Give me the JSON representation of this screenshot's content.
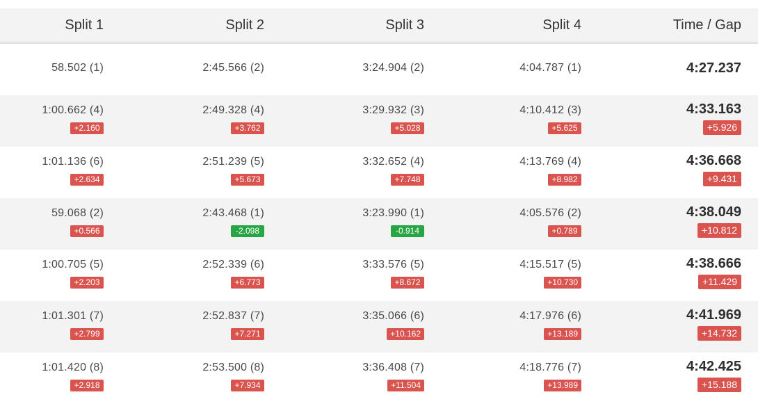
{
  "header": {
    "columns": [
      "Split 1",
      "Split 2",
      "Split 3",
      "Split 4",
      "Time / Gap"
    ]
  },
  "rows": [
    {
      "splits": [
        {
          "time": "58.502 (1)",
          "gap": ""
        },
        {
          "time": "2:45.566 (2)",
          "gap": ""
        },
        {
          "time": "3:24.904 (2)",
          "gap": ""
        },
        {
          "time": "4:04.787 (1)",
          "gap": ""
        }
      ],
      "total": "4:27.237",
      "total_gap": ""
    },
    {
      "splits": [
        {
          "time": "1:00.662 (4)",
          "gap": "+2.160"
        },
        {
          "time": "2:49.328 (4)",
          "gap": "+3.762"
        },
        {
          "time": "3:29.932 (3)",
          "gap": "+5.028"
        },
        {
          "time": "4:10.412 (3)",
          "gap": "+5.625"
        }
      ],
      "total": "4:33.163",
      "total_gap": "+5.926"
    },
    {
      "splits": [
        {
          "time": "1:01.136 (6)",
          "gap": "+2.634"
        },
        {
          "time": "2:51.239 (5)",
          "gap": "+5.673"
        },
        {
          "time": "3:32.652 (4)",
          "gap": "+7.748"
        },
        {
          "time": "4:13.769 (4)",
          "gap": "+8.982"
        }
      ],
      "total": "4:36.668",
      "total_gap": "+9.431"
    },
    {
      "splits": [
        {
          "time": "59.068 (2)",
          "gap": "+0.566"
        },
        {
          "time": "2:43.468 (1)",
          "gap": "-2.098"
        },
        {
          "time": "3:23.990 (1)",
          "gap": "-0.914"
        },
        {
          "time": "4:05.576 (2)",
          "gap": "+0.789"
        }
      ],
      "total": "4:38.049",
      "total_gap": "+10.812"
    },
    {
      "splits": [
        {
          "time": "1:00.705 (5)",
          "gap": "+2.203"
        },
        {
          "time": "2:52.339 (6)",
          "gap": "+6.773"
        },
        {
          "time": "3:33.576 (5)",
          "gap": "+8.672"
        },
        {
          "time": "4:15.517 (5)",
          "gap": "+10.730"
        }
      ],
      "total": "4:38.666",
      "total_gap": "+11.429"
    },
    {
      "splits": [
        {
          "time": "1:01.301 (7)",
          "gap": "+2.799"
        },
        {
          "time": "2:52.837 (7)",
          "gap": "+7.271"
        },
        {
          "time": "3:35.066 (6)",
          "gap": "+10.162"
        },
        {
          "time": "4:17.976 (6)",
          "gap": "+13.189"
        }
      ],
      "total": "4:41.969",
      "total_gap": "+14.732"
    },
    {
      "splits": [
        {
          "time": "1:01.420 (8)",
          "gap": "+2.918"
        },
        {
          "time": "2:53.500 (8)",
          "gap": "+7.934"
        },
        {
          "time": "3:36.408 (7)",
          "gap": "+11.504"
        },
        {
          "time": "4:18.776 (7)",
          "gap": "+13.989"
        }
      ],
      "total": "4:42.425",
      "total_gap": "+15.188"
    }
  ],
  "colors": {
    "gap_positive": "#d9534f",
    "gap_negative": "#27a744",
    "row_alt_bg": "#f3f3f3"
  }
}
